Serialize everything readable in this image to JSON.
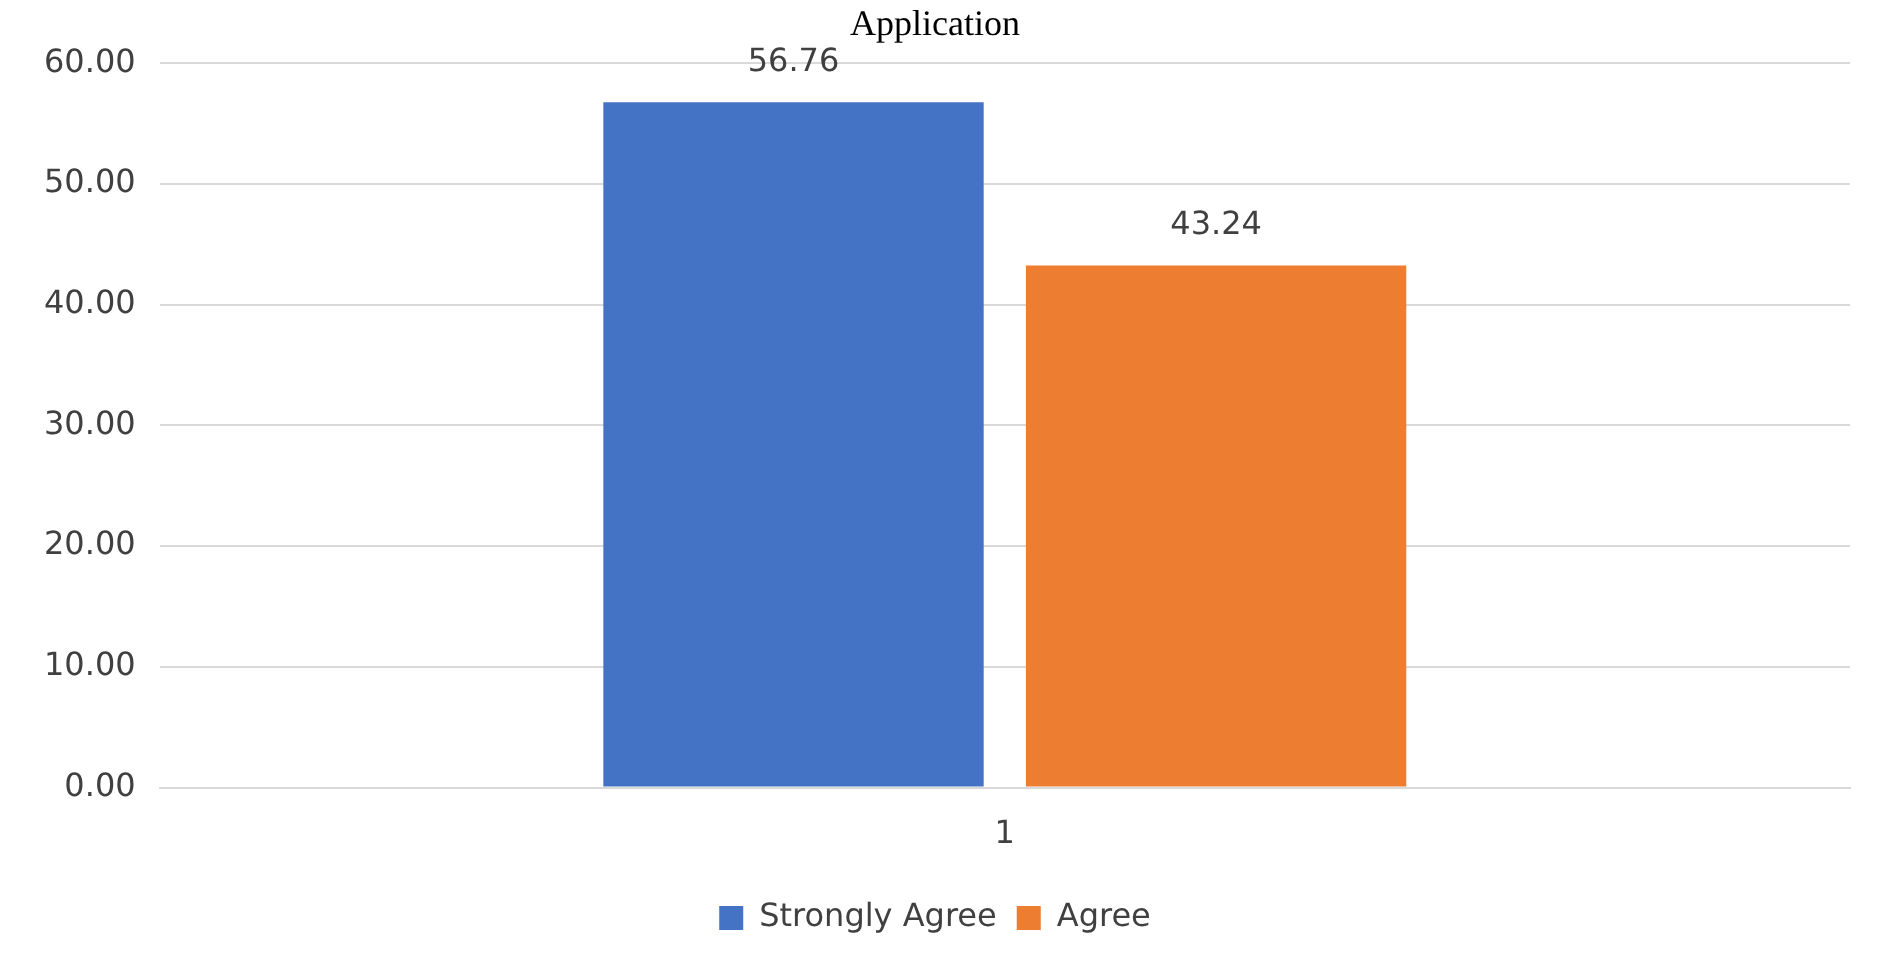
{
  "chart_data": {
    "type": "bar",
    "title": "Application",
    "categories": [
      "1"
    ],
    "series": [
      {
        "name": "Strongly Agree",
        "color": "#4472c4",
        "values": [
          56.76
        ]
      },
      {
        "name": "Agree",
        "color": "#ed7d31",
        "values": [
          43.24
        ]
      }
    ],
    "ylim": [
      0,
      60
    ],
    "yticks": [
      {
        "value": 0,
        "label": "0.00"
      },
      {
        "value": 10,
        "label": "10.00"
      },
      {
        "value": 20,
        "label": "20.00"
      },
      {
        "value": 30,
        "label": "30.00"
      },
      {
        "value": 40,
        "label": "40.00"
      },
      {
        "value": 50,
        "label": "50.00"
      },
      {
        "value": 60,
        "label": "60.00"
      }
    ],
    "grid": "y",
    "legend": "bottom",
    "data_labels": true
  }
}
